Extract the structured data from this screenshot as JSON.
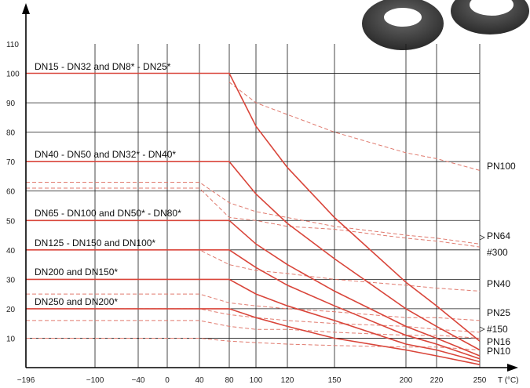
{
  "chart_data": {
    "type": "line",
    "xlabel": "T (°C)",
    "ylabel": "",
    "xlim": [
      -196,
      250
    ],
    "ylim": [
      0,
      110
    ],
    "x_ticks": [
      -196,
      -100,
      -40,
      0,
      40,
      80,
      100,
      120,
      150,
      200,
      220,
      250
    ],
    "x_tick_labels": [
      "−196",
      "−100",
      "−40",
      "0",
      "40",
      "80",
      "100",
      "120",
      "150",
      "200",
      "220",
      "250"
    ],
    "y_ticks": [
      10,
      20,
      30,
      40,
      50,
      60,
      70,
      80,
      90,
      100,
      110
    ],
    "grid": true,
    "colors": {
      "solid": "#d9453a",
      "dashed": "#e07a6e",
      "grid": "#1a1a1a",
      "axis": "#000000"
    },
    "series": [
      {
        "name": "DN15 - DN32 and DN8* - DN25*",
        "style": "solid",
        "x": [
          -196,
          80,
          100,
          120,
          150,
          200,
          220,
          250
        ],
        "y": [
          100,
          100,
          82,
          68,
          51,
          29,
          21,
          9
        ]
      },
      {
        "name": "DN40 - DN50 and DN32* - DN40*",
        "style": "solid",
        "x": [
          -196,
          80,
          100,
          120,
          150,
          200,
          220,
          250
        ],
        "y": [
          70,
          70,
          59,
          49,
          37,
          20,
          14,
          6
        ]
      },
      {
        "name": "DN65 - DN100 and DN50* - DN80*",
        "style": "solid",
        "x": [
          -196,
          80,
          100,
          120,
          150,
          200,
          220,
          250
        ],
        "y": [
          50,
          50,
          42,
          35,
          26,
          14,
          10,
          4
        ]
      },
      {
        "name": "DN125 - DN150 and DN100*",
        "style": "solid",
        "x": [
          -196,
          80,
          100,
          120,
          150,
          200,
          220,
          250
        ],
        "y": [
          40,
          40,
          34,
          28,
          21,
          11,
          8,
          3
        ]
      },
      {
        "name": "DN200 and DN150*",
        "style": "solid",
        "x": [
          -196,
          80,
          100,
          120,
          150,
          200,
          220,
          250
        ],
        "y": [
          30,
          30,
          25,
          21,
          16,
          8,
          6,
          2
        ]
      },
      {
        "name": "DN250 and DN200*",
        "style": "solid",
        "x": [
          -196,
          80,
          100,
          120,
          150,
          200,
          220,
          250
        ],
        "y": [
          20,
          20,
          17,
          14,
          10,
          6,
          4,
          1
        ]
      },
      {
        "name": "PN100",
        "style": "dashed",
        "x": [
          80,
          100,
          120,
          150,
          200,
          220,
          250
        ],
        "y": [
          97,
          90,
          86,
          80,
          73,
          71,
          67
        ]
      },
      {
        "name": "PN64",
        "style": "dashed",
        "x": [
          -196,
          40,
          80,
          100,
          120,
          150,
          200,
          220,
          250
        ],
        "y": [
          63,
          63,
          56,
          53,
          51,
          48,
          45,
          44,
          42
        ]
      },
      {
        "name": "#300",
        "style": "dashed",
        "x": [
          -196,
          40,
          80,
          100,
          120,
          150,
          200,
          220,
          250
        ],
        "y": [
          61,
          61,
          51,
          50,
          48,
          47,
          44,
          43,
          41
        ]
      },
      {
        "name": "PN40",
        "style": "dashed",
        "x": [
          -196,
          40,
          80,
          100,
          120,
          150,
          200,
          220,
          250
        ],
        "y": [
          40,
          40,
          35,
          33,
          32,
          30,
          28,
          27,
          26
        ]
      },
      {
        "name": "PN25",
        "style": "dashed",
        "x": [
          -196,
          40,
          80,
          100,
          120,
          150,
          200,
          220,
          250
        ],
        "y": [
          25,
          25,
          22,
          21,
          20,
          19,
          17,
          17,
          16
        ]
      },
      {
        "name": "#150",
        "style": "dashed",
        "x": [
          -196,
          40,
          80,
          100,
          120,
          150,
          200,
          220,
          250
        ],
        "y": [
          20,
          20,
          18,
          17,
          16,
          15,
          14,
          13,
          12
        ]
      },
      {
        "name": "PN16",
        "style": "dashed",
        "x": [
          -196,
          40,
          80,
          100,
          120,
          150,
          200,
          220,
          250
        ],
        "y": [
          16,
          16,
          14,
          13,
          13,
          12,
          11,
          11,
          10
        ]
      },
      {
        "name": "PN10",
        "style": "dashed",
        "x": [
          -196,
          40,
          80,
          100,
          120,
          150,
          200,
          220,
          250
        ],
        "y": [
          10,
          10,
          9,
          8.5,
          8,
          7.5,
          7,
          7,
          6
        ]
      }
    ],
    "annotations": [
      "DN15 - DN32 and DN8* - DN25*",
      "DN40 - DN50 and DN32* - DN40*",
      "DN65 - DN100 and DN50* - DN80*",
      "DN125 - DN150 and DN100*",
      "DN200 and DN150*",
      "DN250 and DN200*"
    ],
    "right_labels": [
      "PN100",
      "PN64",
      "#300",
      "PN40",
      "PN25",
      "#150",
      "PN16",
      "PN10"
    ]
  }
}
